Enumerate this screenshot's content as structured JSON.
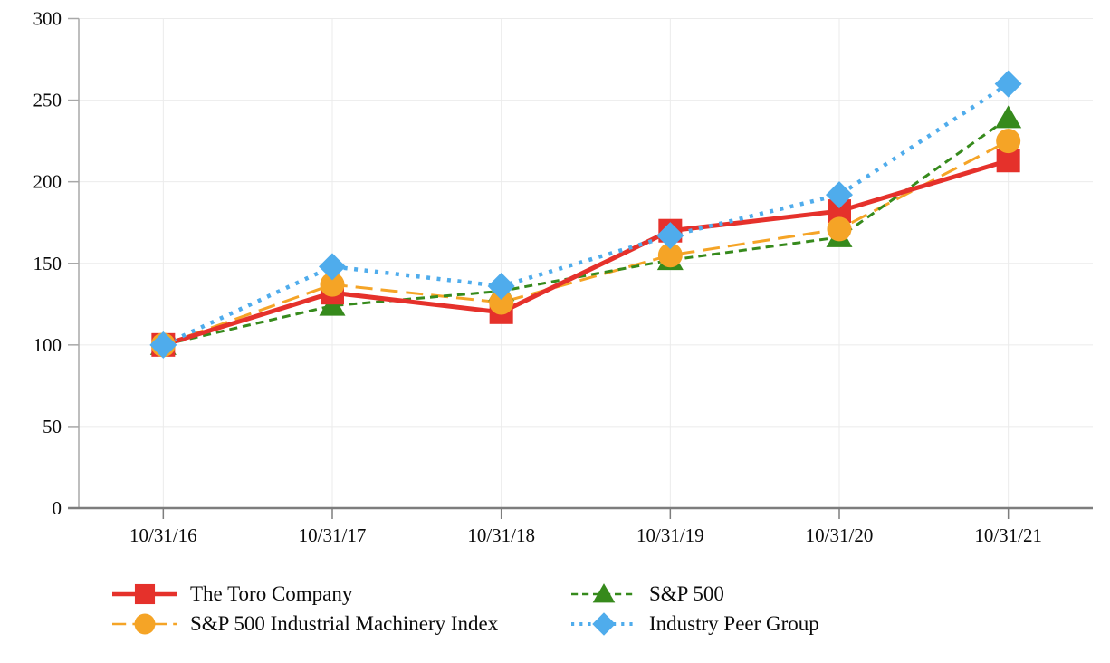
{
  "chart_data": {
    "type": "line",
    "title": "",
    "xlabel": "",
    "ylabel": "",
    "x": [
      "10/31/16",
      "10/31/17",
      "10/31/18",
      "10/31/19",
      "10/31/20",
      "10/31/21"
    ],
    "y_ticks": [
      0,
      50,
      100,
      150,
      200,
      250,
      300
    ],
    "ylim": [
      0,
      300
    ],
    "grid": true,
    "legend_position": "bottom",
    "series": [
      {
        "name": "The Toro Company",
        "color": "#E5312B",
        "marker": "square",
        "line_style": "solid",
        "values": [
          100,
          132,
          120,
          170,
          182,
          213
        ]
      },
      {
        "name": "S&P 500",
        "color": "#368A1C",
        "marker": "triangle",
        "line_style": "dashed",
        "values": [
          100,
          124,
          133,
          152,
          166,
          239
        ]
      },
      {
        "name": "S&P 500 Industrial Machinery Index",
        "color": "#F5A426",
        "marker": "circle",
        "line_style": "long-dash",
        "values": [
          100,
          137,
          126,
          155,
          171,
          225
        ]
      },
      {
        "name": "Industry Peer Group",
        "color": "#4FACEC",
        "marker": "diamond",
        "line_style": "dotted",
        "values": [
          100,
          148,
          136,
          167,
          192,
          260
        ]
      }
    ]
  }
}
